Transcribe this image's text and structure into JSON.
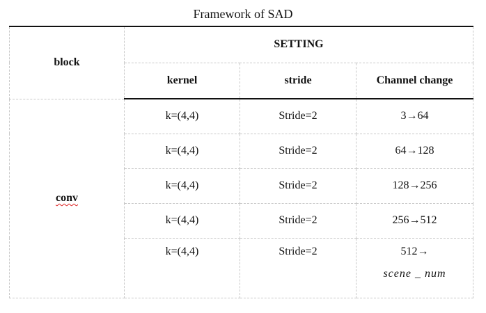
{
  "caption": "Framework of SAD",
  "header": {
    "block": "block",
    "setting": "SETTING",
    "kernel": "kernel",
    "stride": "stride",
    "channel_change": "Channel change"
  },
  "block_label": "conv",
  "rows": [
    {
      "kernel": "k=(4,4)",
      "stride": "Stride=2",
      "channel": "3→64"
    },
    {
      "kernel": "k=(4,4)",
      "stride": "Stride=2",
      "channel": "64→128"
    },
    {
      "kernel": "k=(4,4)",
      "stride": "Stride=2",
      "channel": "128→256"
    },
    {
      "kernel": "k=(4,4)",
      "stride": "Stride=2",
      "channel": "256→512"
    },
    {
      "kernel": "k=(4,4)",
      "stride": "Stride=2",
      "channel": "512→",
      "channel_line2": "scene _ num"
    }
  ]
}
